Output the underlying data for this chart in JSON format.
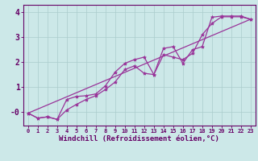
{
  "xlabel": "Windchill (Refroidissement éolien,°C)",
  "bg_color": "#cce8e8",
  "line_color": "#993399",
  "grid_color": "#aacccc",
  "axis_color": "#660066",
  "tick_label_color": "#660066",
  "xlabel_color": "#660066",
  "xlim": [
    -0.5,
    23.5
  ],
  "ylim": [
    -0.55,
    4.3
  ],
  "yticks": [
    0,
    1,
    2,
    3,
    4
  ],
  "ytick_labels": [
    "-0",
    "1",
    "2",
    "3",
    "4"
  ],
  "xticks": [
    0,
    1,
    2,
    3,
    4,
    5,
    6,
    7,
    8,
    9,
    10,
    11,
    12,
    13,
    14,
    15,
    16,
    17,
    18,
    19,
    20,
    21,
    22,
    23
  ],
  "line1_x": [
    0,
    1,
    2,
    3,
    4,
    5,
    6,
    7,
    8,
    9,
    10,
    11,
    12,
    13,
    14,
    15,
    16,
    17,
    18,
    19,
    20,
    21,
    22,
    23
  ],
  "line1_y": [
    -0.05,
    -0.25,
    -0.2,
    -0.3,
    0.08,
    0.3,
    0.5,
    0.65,
    0.9,
    1.2,
    1.7,
    1.85,
    1.55,
    1.5,
    2.3,
    2.2,
    2.1,
    2.35,
    3.1,
    3.55,
    3.82,
    3.82,
    3.82,
    3.72
  ],
  "line2_x": [
    0,
    1,
    2,
    3,
    4,
    5,
    6,
    7,
    8,
    9,
    10,
    11,
    12,
    13,
    14,
    15,
    16,
    17,
    18,
    19,
    20,
    21,
    22,
    23
  ],
  "line2_y": [
    -0.05,
    -0.25,
    -0.2,
    -0.3,
    0.5,
    0.62,
    0.65,
    0.72,
    1.05,
    1.6,
    1.95,
    2.1,
    2.2,
    1.5,
    2.55,
    2.62,
    1.95,
    2.5,
    2.62,
    3.8,
    3.85,
    3.85,
    3.85,
    3.72
  ],
  "line3_x": [
    0,
    23
  ],
  "line3_y": [
    -0.05,
    3.72
  ],
  "marker_style": "*",
  "marker_size": 3,
  "line_width": 0.9,
  "font_family": "monospace",
  "xlabel_fontsize": 6.5,
  "ytick_fontsize": 7,
  "xtick_fontsize": 5
}
